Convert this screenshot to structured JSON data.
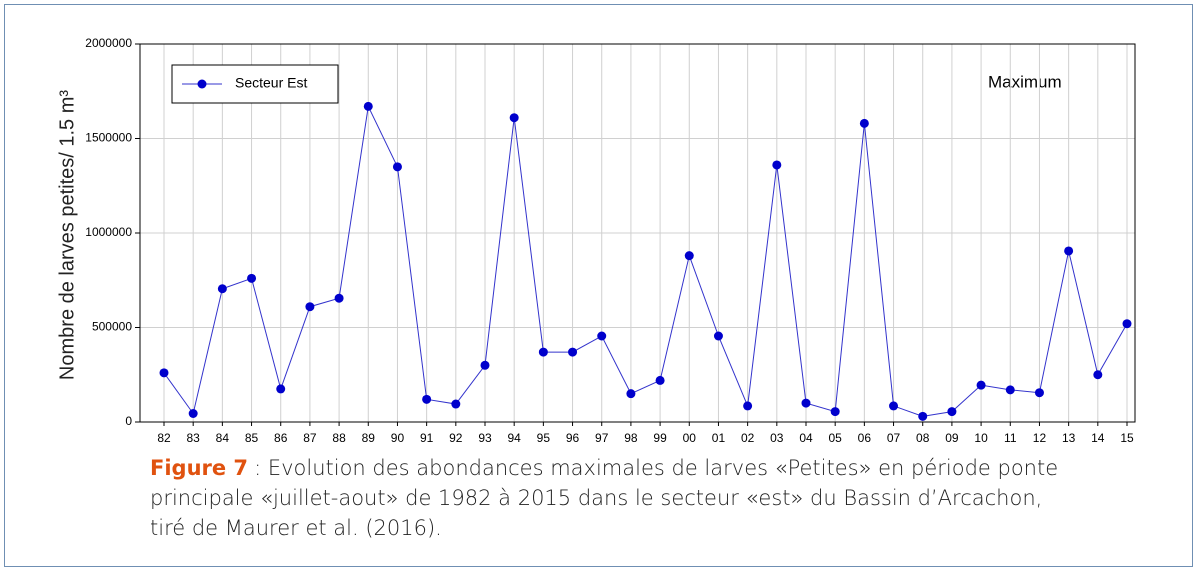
{
  "chart_data": {
    "type": "line",
    "ylabel": "Nombre de larves petites/ 1.5 m³",
    "annotation": "Maximum",
    "categories": [
      "82",
      "83",
      "84",
      "85",
      "86",
      "87",
      "88",
      "89",
      "90",
      "91",
      "92",
      "93",
      "94",
      "95",
      "96",
      "97",
      "98",
      "99",
      "00",
      "01",
      "02",
      "03",
      "04",
      "05",
      "06",
      "07",
      "08",
      "09",
      "10",
      "11",
      "12",
      "13",
      "14",
      "15"
    ],
    "series": [
      {
        "name": "Secteur Est",
        "color": "#0000cc",
        "values": [
          260000,
          45000,
          705000,
          760000,
          175000,
          610000,
          655000,
          1670000,
          1350000,
          120000,
          95000,
          300000,
          1610000,
          370000,
          370000,
          455000,
          150000,
          220000,
          880000,
          455000,
          85000,
          1360000,
          100000,
          55000,
          1580000,
          85000,
          30000,
          55000,
          195000,
          170000,
          155000,
          905000,
          250000,
          520000
        ]
      }
    ],
    "ylim": [
      0,
      2000000
    ],
    "yticks": [
      0,
      500000,
      1000000,
      1500000,
      2000000
    ],
    "grid": true,
    "legend": "upper left"
  },
  "caption": {
    "label": "Figure 7",
    "lines": [
      ": Evolution des abondances maximales de larves «Petites» en période ponte",
      "principale «juillet-aout» de 1982 à 2015 dans le secteur «est» du Bassin d’Arcachon,",
      "tiré de Maurer et al. (2016)."
    ]
  }
}
